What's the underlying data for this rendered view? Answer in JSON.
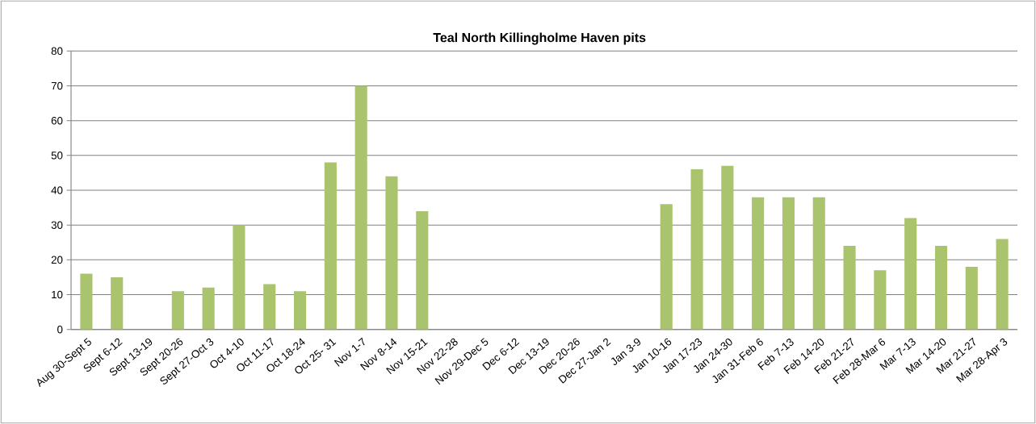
{
  "chart_data": {
    "type": "bar",
    "title": "Teal North Killingholme Haven pits",
    "categories": [
      "Aug 30-Sept 5",
      "Sept 6-12",
      "Sept 13-19",
      "Sept 20-26",
      "Sept 27-Oct 3",
      "Oct 4-10",
      "Oct 11-17",
      "Oct 18-24",
      "Oct 25- 31",
      "Nov 1-7",
      "Nov 8-14",
      "Nov 15-21",
      "Nov 22-28",
      "Nov 29-Dec 5",
      "Dec 6-12",
      "Dec 13-19",
      "Dec 20-26",
      "Dec 27-Jan 2",
      "Jan 3-9",
      "Jan 10-16",
      "Jan 17-23",
      "Jan 24-30",
      "Jan 31-Feb 6",
      "Feb 7-13",
      "Feb 14-20",
      "Feb 21-27",
      "Feb 28-Mar 6",
      "Mar 7-13",
      "Mar 14-20",
      "Mar 21-27",
      "Mar 28-Apr 3"
    ],
    "values": [
      16,
      15,
      null,
      11,
      12,
      30,
      13,
      11,
      48,
      70,
      44,
      34,
      null,
      null,
      null,
      null,
      null,
      null,
      null,
      36,
      46,
      47,
      38,
      38,
      38,
      24,
      17,
      32,
      24,
      18,
      26
    ],
    "color": "#a9c46c",
    "ylim": [
      0,
      80
    ],
    "yticks": [
      0,
      10,
      20,
      30,
      40,
      50,
      60,
      70,
      80
    ],
    "grid": "y"
  }
}
